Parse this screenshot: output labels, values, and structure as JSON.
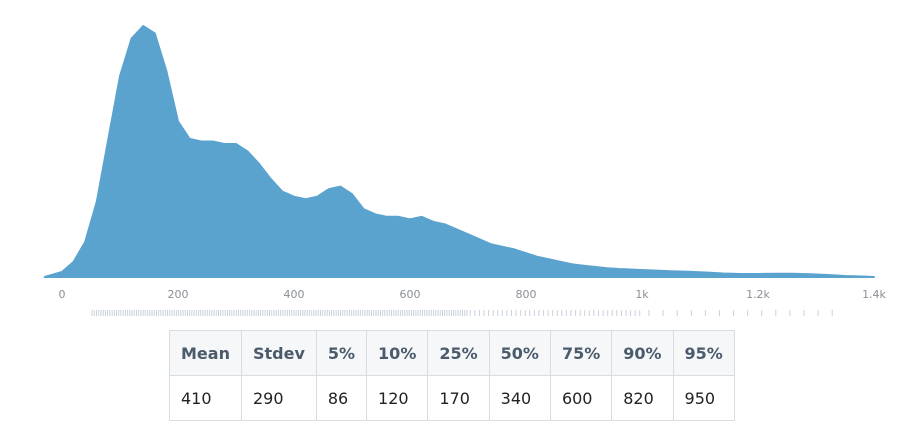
{
  "chart_data": {
    "type": "area",
    "color": "#5ba3cf",
    "grid": false,
    "xlim": [
      0,
      1400
    ],
    "x_ticks": [
      {
        "value": 0,
        "label": "0"
      },
      {
        "value": 200,
        "label": "200"
      },
      {
        "value": 400,
        "label": "400"
      },
      {
        "value": 600,
        "label": "600"
      },
      {
        "value": 800,
        "label": "800"
      },
      {
        "value": 1000,
        "label": "1k"
      },
      {
        "value": 1200,
        "label": "1.2k"
      },
      {
        "value": 1400,
        "label": "1.4k"
      }
    ],
    "density": {
      "x": [
        -30,
        0,
        20,
        40,
        60,
        80,
        100,
        120,
        140,
        160,
        180,
        200,
        220,
        240,
        260,
        280,
        300,
        320,
        340,
        360,
        380,
        400,
        420,
        440,
        460,
        480,
        500,
        520,
        540,
        560,
        580,
        600,
        620,
        640,
        660,
        680,
        700,
        720,
        740,
        760,
        780,
        800,
        820,
        840,
        860,
        880,
        900,
        920,
        940,
        960,
        980,
        1000,
        1020,
        1050,
        1080,
        1110,
        1140,
        1170,
        1200,
        1230,
        1260,
        1290,
        1320,
        1350,
        1380,
        1400
      ],
      "y": [
        0,
        0.02,
        0.06,
        0.14,
        0.3,
        0.55,
        0.8,
        0.95,
        1.0,
        0.97,
        0.82,
        0.62,
        0.55,
        0.54,
        0.54,
        0.53,
        0.53,
        0.5,
        0.45,
        0.39,
        0.34,
        0.32,
        0.31,
        0.32,
        0.35,
        0.36,
        0.33,
        0.27,
        0.25,
        0.24,
        0.24,
        0.23,
        0.24,
        0.22,
        0.21,
        0.19,
        0.17,
        0.15,
        0.13,
        0.12,
        0.11,
        0.095,
        0.08,
        0.07,
        0.06,
        0.05,
        0.045,
        0.04,
        0.035,
        0.032,
        0.03,
        0.028,
        0.026,
        0.023,
        0.021,
        0.018,
        0.014,
        0.012,
        0.012,
        0.013,
        0.013,
        0.011,
        0.008,
        0.004,
        0.002,
        0
      ]
    },
    "rug": {
      "color": "#c8d2dc",
      "segments": [
        {
          "from": 50,
          "to": 700,
          "count": 170
        },
        {
          "from": 700,
          "to": 1000,
          "count": 38
        },
        {
          "from": 1000,
          "to": 1340,
          "count": 14
        }
      ]
    },
    "stats": {
      "headers": [
        "Mean",
        "Stdev",
        "5%",
        "10%",
        "25%",
        "50%",
        "75%",
        "90%",
        "95%"
      ],
      "values": [
        "410",
        "290",
        "86",
        "120",
        "170",
        "340",
        "600",
        "820",
        "950"
      ]
    }
  }
}
